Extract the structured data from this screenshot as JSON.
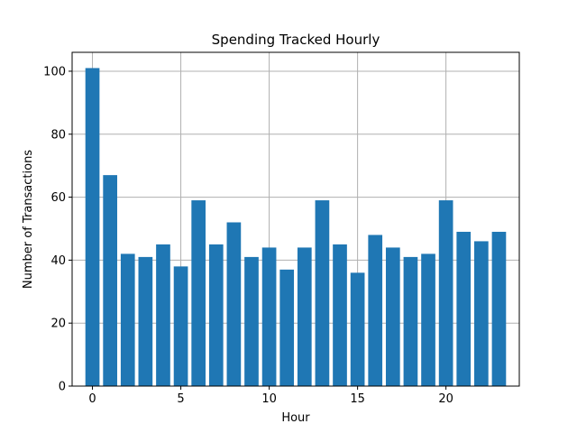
{
  "chart_data": {
    "type": "bar",
    "title": "Spending Tracked Hourly",
    "xlabel": "Hour",
    "ylabel": "Number of Transactions",
    "x": [
      0,
      1,
      2,
      3,
      4,
      5,
      6,
      7,
      8,
      9,
      10,
      11,
      12,
      13,
      14,
      15,
      16,
      17,
      18,
      19,
      20,
      21,
      22,
      23
    ],
    "values": [
      101,
      67,
      42,
      41,
      45,
      38,
      59,
      45,
      52,
      41,
      44,
      37,
      44,
      59,
      45,
      36,
      48,
      44,
      41,
      42,
      59,
      49,
      46,
      49
    ],
    "xlim": [
      -1.15,
      24.15
    ],
    "ylim": [
      0,
      106
    ],
    "xticks": [
      0,
      5,
      10,
      15,
      20
    ],
    "yticks": [
      0,
      20,
      40,
      60,
      80,
      100
    ],
    "grid": true,
    "bar_color": "#1f77b4",
    "grid_color": "#b0b0b0"
  }
}
